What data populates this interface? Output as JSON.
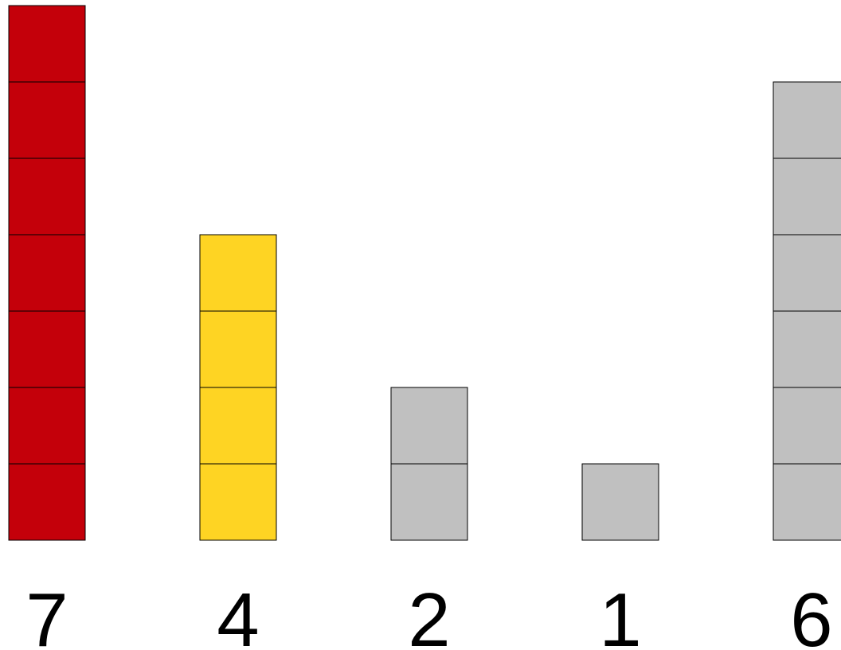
{
  "chart_data": {
    "type": "bar",
    "categories": [
      "7",
      "4",
      "2",
      "1",
      "6"
    ],
    "values": [
      7,
      4,
      2,
      1,
      6
    ],
    "colors": [
      "#c4000a",
      "#fed423",
      "#c0c0c0",
      "#c0c0c0",
      "#c0c0c0"
    ],
    "ylim": [
      0,
      7
    ],
    "grid": false,
    "legend": "none"
  }
}
